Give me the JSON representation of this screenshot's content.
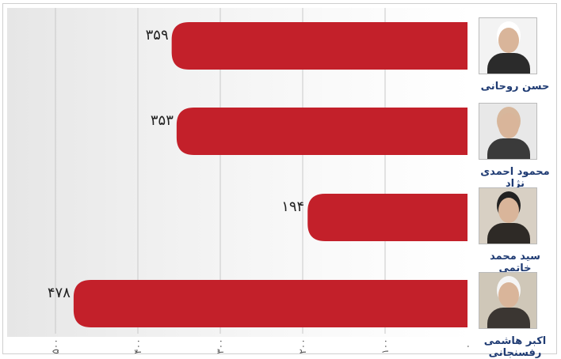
{
  "chart_data": {
    "type": "bar",
    "orientation": "horizontal",
    "direction": "right-to-left",
    "categories": [
      "حسن روحانی",
      "محمود احمدی نژاد",
      "سید محمد خاتمی",
      "اکبر هاشمی رفسنجانی"
    ],
    "values": [
      359,
      353,
      194,
      478
    ],
    "value_labels": [
      "۳۵۹",
      "۳۵۳",
      "۱۹۴",
      "۴۷۸"
    ],
    "xlim": [
      0,
      500
    ],
    "ticks": [
      0,
      100,
      200,
      300,
      400,
      500
    ],
    "tick_labels": [
      "۰",
      "۱۰۰",
      "۲۰۰",
      "۳۰۰",
      "۴۰۰",
      "۵۰۰"
    ],
    "grid": true,
    "bar_color": "#c3202a",
    "name_color": "#1f3b73"
  }
}
